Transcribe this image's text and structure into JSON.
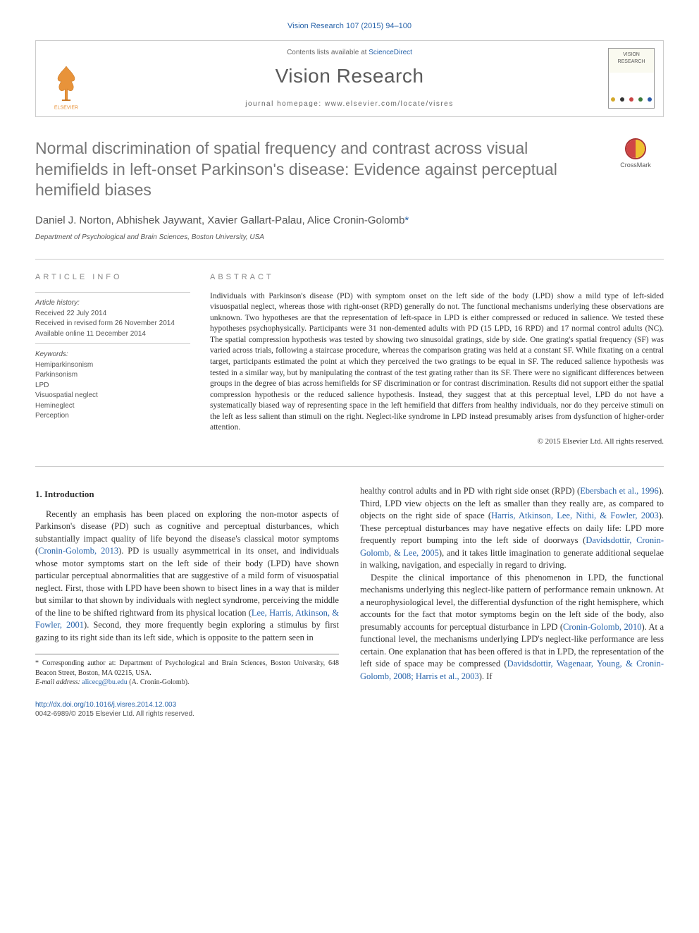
{
  "header": {
    "citation": "Vision Research 107 (2015) 94–100",
    "contents_prefix": "Contents lists available at ",
    "contents_link": "ScienceDirect",
    "journal_name": "Vision Research",
    "homepage_prefix": "journal homepage: ",
    "homepage_url": "www.elsevier.com/locate/visres",
    "publisher": "ELSEVIER",
    "cover_label_top": "VISION",
    "cover_label_bottom": "RESEARCH",
    "cover_dot_colors": [
      "#d4a82a",
      "#333333",
      "#c94444",
      "#3a7a3a",
      "#2a5aa8"
    ]
  },
  "article": {
    "title": "Normal discrimination of spatial frequency and contrast across visual hemifields in left-onset Parkinson's disease: Evidence against perceptual hemifield biases",
    "crossmark_label": "CrossMark",
    "authors": "Daniel J. Norton, Abhishek Jaywant, Xavier Gallart-Palau, Alice Cronin-Golomb",
    "corr_marker": "*",
    "affiliation": "Department of Psychological and Brain Sciences, Boston University, USA"
  },
  "info": {
    "label": "ARTICLE INFO",
    "history_label": "Article history:",
    "received": "Received 22 July 2014",
    "revised": "Received in revised form 26 November 2014",
    "online": "Available online 11 December 2014",
    "keywords_label": "Keywords:",
    "keywords": [
      "Hemiparkinsonism",
      "Parkinsonism",
      "LPD",
      "Visuospatial neglect",
      "Hemineglect",
      "Perception"
    ]
  },
  "abstract": {
    "label": "ABSTRACT",
    "text": "Individuals with Parkinson's disease (PD) with symptom onset on the left side of the body (LPD) show a mild type of left-sided visuospatial neglect, whereas those with right-onset (RPD) generally do not. The functional mechanisms underlying these observations are unknown. Two hypotheses are that the representation of left-space in LPD is either compressed or reduced in salience. We tested these hypotheses psychophysically. Participants were 31 non-demented adults with PD (15 LPD, 16 RPD) and 17 normal control adults (NC). The spatial compression hypothesis was tested by showing two sinusoidal gratings, side by side. One grating's spatial frequency (SF) was varied across trials, following a staircase procedure, whereas the comparison grating was held at a constant SF. While fixating on a central target, participants estimated the point at which they perceived the two gratings to be equal in SF. The reduced salience hypothesis was tested in a similar way, but by manipulating the contrast of the test grating rather than its SF. There were no significant differences between groups in the degree of bias across hemifields for SF discrimination or for contrast discrimination. Results did not support either the spatial compression hypothesis or the reduced salience hypothesis. Instead, they suggest that at this perceptual level, LPD do not have a systematically biased way of representing space in the left hemifield that differs from healthy individuals, nor do they perceive stimuli on the left as less salient than stimuli on the right. Neglect-like syndrome in LPD instead presumably arises from dysfunction of higher-order attention.",
    "copyright": "© 2015 Elsevier Ltd. All rights reserved."
  },
  "body": {
    "intro_heading": "1. Introduction",
    "p1a": "Recently an emphasis has been placed on exploring the non-motor aspects of Parkinson's disease (PD) such as cognitive and perceptual disturbances, which substantially impact quality of life beyond the disease's classical motor symptoms (",
    "ref1": "Cronin-Golomb, 2013",
    "p1b": "). PD is usually asymmetrical in its onset, and individuals whose motor symptoms start on the left side of their body (LPD) have shown particular perceptual abnormalities that are suggestive of a mild form of visuospatial neglect. First, those with LPD have been shown to bisect lines in a way that is milder but similar to that shown by individuals with neglect syndrome, perceiving the middle of the line to be shifted rightward from its physical location (",
    "ref2": "Lee, Harris, Atkinson, & Fowler, 2001",
    "p1c": "). Second, they more frequently begin exploring a stimulus by first gazing to its right side than its left side, which is opposite to the pattern seen in",
    "p2a": "healthy control adults and in PD with right side onset (RPD) (",
    "ref3": "Ebersbach et al., 1996",
    "p2b": "). Third, LPD view objects on the left as smaller than they really are, as compared to objects on the right side of space (",
    "ref4": "Harris, Atkinson, Lee, Nithi, & Fowler, 2003",
    "p2c": "). These perceptual disturbances may have negative effects on daily life: LPD more frequently report bumping into the left side of doorways (",
    "ref5": "Davidsdottir, Cronin-Golomb, & Lee, 2005",
    "p2d": "), and it takes little imagination to generate additional sequelae in walking, navigation, and especially in regard to driving.",
    "p3a": "Despite the clinical importance of this phenomenon in LPD, the functional mechanisms underlying this neglect-like pattern of performance remain unknown. At a neurophysiological level, the differential dysfunction of the right hemisphere, which accounts for the fact that motor symptoms begin on the left side of the body, also presumably accounts for perceptual disturbance in LPD (",
    "ref6": "Cronin-Golomb, 2010",
    "p3b": "). At a functional level, the mechanisms underlying LPD's neglect-like performance are less certain. One explanation that has been offered is that in LPD, the representation of the left side of space may be compressed (",
    "ref7": "Davidsdottir, Wagenaar, Young, & Cronin-Golomb, 2008; Harris et al., 2003",
    "p3c": "). If"
  },
  "footnote": {
    "corr_label": "* Corresponding author at: Department of Psychological and Brain Sciences, Boston University, 648 Beacon Street, Boston, MA 02215, USA.",
    "email_label": "E-mail address: ",
    "email": "alicecg@bu.edu",
    "email_suffix": " (A. Cronin-Golomb)."
  },
  "footer": {
    "doi": "http://dx.doi.org/10.1016/j.visres.2014.12.003",
    "issn": "0042-6989/© 2015 Elsevier Ltd. All rights reserved."
  },
  "colors": {
    "link": "#2964aa",
    "muted": "#767676",
    "border": "#cccccc"
  }
}
